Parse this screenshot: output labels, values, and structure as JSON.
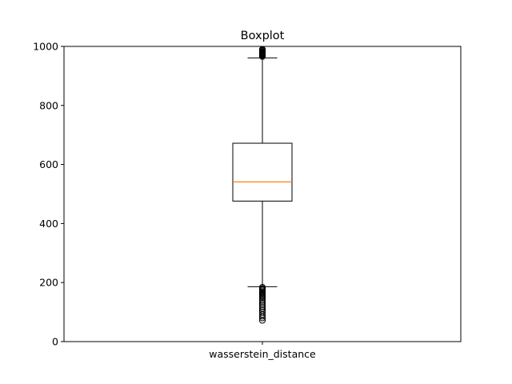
{
  "chart_data": {
    "type": "box",
    "title": "Boxplot",
    "xlabel": "",
    "ylabel": "",
    "categories": [
      "wasserstein_distance"
    ],
    "ylim": [
      0,
      1000
    ],
    "yticks": [
      0,
      200,
      400,
      600,
      800,
      1000
    ],
    "grid": false,
    "boxes": [
      {
        "name": "wasserstein_distance",
        "whisker_low": 186,
        "q1": 476,
        "median": 541,
        "q3": 672,
        "whisker_high": 961,
        "outliers_high": [
          966,
          968,
          970,
          972,
          974,
          976,
          978,
          980,
          982,
          985,
          988,
          990
        ],
        "outliers_low": [
          72,
          80,
          86,
          92,
          100,
          106,
          112,
          118,
          124,
          130,
          136,
          142,
          148,
          152,
          156,
          160,
          164,
          168,
          172,
          176,
          180,
          184
        ]
      }
    ],
    "colors": {
      "median": "#ff7f0e",
      "box": "#000000",
      "whisker": "#000000",
      "outlier_edge": "#000000"
    }
  }
}
